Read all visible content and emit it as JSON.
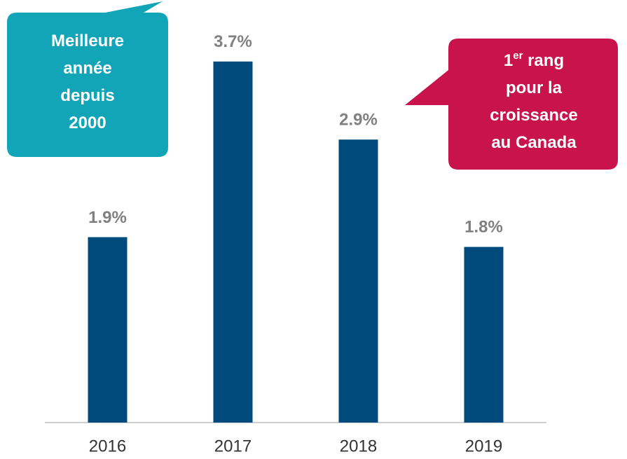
{
  "chart_data": {
    "type": "bar",
    "categories": [
      "2016",
      "2017",
      "2018",
      "2019"
    ],
    "values": [
      1.9,
      3.7,
      2.9,
      1.8
    ],
    "value_labels": [
      "1.9%",
      "3.7%",
      "2.9%",
      "1.8%"
    ],
    "color": "#004a7c",
    "ylim": [
      0,
      4
    ],
    "annotations": [
      {
        "color": "#12a5b8",
        "lines": [
          [
            "Meilleure"
          ],
          [
            "année"
          ],
          [
            "depuis"
          ],
          [
            "2000"
          ]
        ]
      },
      {
        "color": "#c8134d",
        "lines": [
          [
            "1",
            {
              "sup": "er"
            },
            " rang"
          ],
          [
            "pour la"
          ],
          [
            "croissance"
          ],
          [
            "au Canada"
          ]
        ]
      }
    ]
  }
}
